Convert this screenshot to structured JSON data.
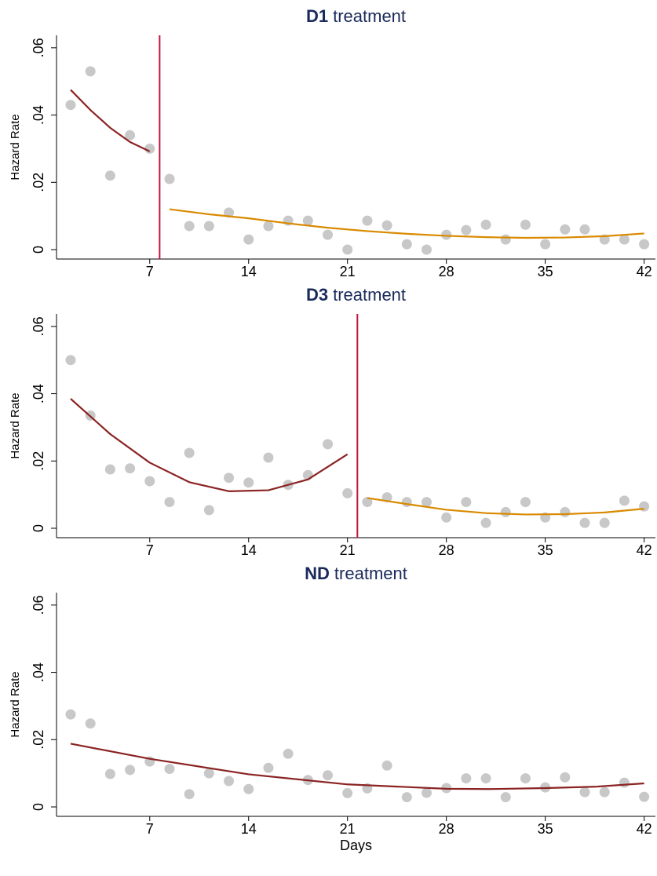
{
  "chart_data": [
    {
      "type": "scatter",
      "title_parts": [
        "D1",
        "treatment"
      ],
      "ylabel": "Hazard Rate",
      "xlim": [
        0.4,
        42.8
      ],
      "ylim": [
        -0.0028,
        0.0637
      ],
      "xticks": [
        7,
        14,
        21,
        28,
        35,
        42
      ],
      "yticks": [
        0,
        {
          "value": 0.02,
          "label": ".02"
        },
        {
          "value": 0.04,
          "label": ".04"
        },
        {
          "value": 0.06,
          "label": ".06"
        }
      ],
      "vline": {
        "x": 7.7,
        "color": "#c0143c"
      },
      "series": [
        {
          "mode": "markers",
          "color": "#c8c8c8",
          "x": [
            1.4,
            2.8,
            4.2,
            5.6,
            7,
            8.4,
            9.8,
            11.2,
            12.6,
            14,
            15.4,
            16.8,
            18.2,
            19.6,
            21,
            22.4,
            23.8,
            25.2,
            26.6,
            28,
            29.4,
            30.8,
            32.2,
            33.6,
            35,
            36.4,
            37.8,
            39.2,
            40.6,
            42
          ],
          "values": [
            0.043,
            0.053,
            0.022,
            0.034,
            0.03,
            0.021,
            0.007,
            0.007,
            0.011,
            0.003,
            0.007,
            0.0086,
            0.0086,
            0.0044,
            0,
            0.0086,
            0.0072,
            0.0016,
            0,
            0.0044,
            0.0058,
            0.0074,
            0.003,
            0.0074,
            0.0016,
            0.006,
            0.006,
            0.003,
            0.003,
            0.0016
          ]
        },
        {
          "mode": "lines",
          "color": "#8b2323",
          "x": [
            1.4,
            2.8,
            4.2,
            5.6,
            7
          ],
          "values": [
            0.0475,
            0.0415,
            0.0362,
            0.032,
            0.0292
          ]
        },
        {
          "mode": "lines",
          "color": "#d98a00",
          "x": [
            8.4,
            11.2,
            14,
            16.8,
            19.6,
            22.4,
            25.2,
            28,
            30.8,
            33.6,
            36.4,
            39.2,
            42
          ],
          "values": [
            0.012,
            0.0105,
            0.0093,
            0.0078,
            0.0065,
            0.0055,
            0.0047,
            0.0041,
            0.0037,
            0.0035,
            0.0036,
            0.004,
            0.0048
          ]
        }
      ]
    },
    {
      "type": "scatter",
      "title_parts": [
        "D3",
        "treatment"
      ],
      "ylabel": "Hazard Rate",
      "xlim": [
        0.4,
        42.8
      ],
      "ylim": [
        -0.0028,
        0.0637
      ],
      "xticks": [
        7,
        14,
        21,
        28,
        35,
        42
      ],
      "yticks": [
        0,
        {
          "value": 0.02,
          "label": ".02"
        },
        {
          "value": 0.04,
          "label": ".04"
        },
        {
          "value": 0.06,
          "label": ".06"
        }
      ],
      "vline": {
        "x": 21.7,
        "color": "#c0143c"
      },
      "series": [
        {
          "mode": "markers",
          "color": "#c8c8c8",
          "x": [
            1.4,
            2.8,
            4.2,
            5.6,
            7,
            8.4,
            9.8,
            11.2,
            12.6,
            14,
            15.4,
            16.8,
            18.2,
            19.6,
            21,
            22.4,
            23.8,
            25.2,
            26.6,
            28,
            29.4,
            30.8,
            32.2,
            33.6,
            35,
            36.4,
            37.8,
            39.2,
            40.6,
            42
          ],
          "values": [
            0.05,
            0.0335,
            0.0175,
            0.0178,
            0.014,
            0.0078,
            0.0224,
            0.0054,
            0.015,
            0.0136,
            0.021,
            0.0129,
            0.0158,
            0.025,
            0.0104,
            0.0078,
            0.0092,
            0.0078,
            0.0078,
            0.0032,
            0.0078,
            0.0016,
            0.0048,
            0.0078,
            0.0032,
            0.0048,
            0.0016,
            0.0016,
            0.0082,
            0.0065
          ]
        },
        {
          "mode": "lines",
          "color": "#8b2323",
          "x": [
            1.4,
            4.2,
            7,
            9.8,
            12.6,
            15.4,
            18.2,
            21
          ],
          "values": [
            0.0385,
            0.028,
            0.0195,
            0.0137,
            0.011,
            0.0113,
            0.0145,
            0.022
          ]
        },
        {
          "mode": "lines",
          "color": "#d98a00",
          "x": [
            22.4,
            25.2,
            28,
            30.8,
            33.6,
            36.4,
            39.2,
            42
          ],
          "values": [
            0.009,
            0.0072,
            0.0055,
            0.0045,
            0.0041,
            0.0042,
            0.0047,
            0.0058
          ]
        }
      ]
    },
    {
      "type": "scatter",
      "title_parts": [
        "ND",
        "treatment"
      ],
      "ylabel": "Hazard Rate",
      "xlabel": "Days",
      "xlim": [
        0.4,
        42.8
      ],
      "ylim": [
        -0.0028,
        0.0637
      ],
      "xticks": [
        7,
        14,
        21,
        28,
        35,
        42
      ],
      "yticks": [
        0,
        {
          "value": 0.02,
          "label": ".02"
        },
        {
          "value": 0.04,
          "label": ".04"
        },
        {
          "value": 0.06,
          "label": ".06"
        }
      ],
      "series": [
        {
          "mode": "markers",
          "color": "#c8c8c8",
          "x": [
            1.4,
            2.8,
            4.2,
            5.6,
            7,
            8.4,
            9.8,
            11.2,
            12.6,
            14,
            15.4,
            16.8,
            18.2,
            19.6,
            21,
            22.4,
            23.8,
            25.2,
            26.6,
            28,
            29.4,
            30.8,
            32.2,
            33.6,
            35,
            36.4,
            37.8,
            39.2,
            40.6,
            42
          ],
          "values": [
            0.0275,
            0.0248,
            0.0098,
            0.011,
            0.0135,
            0.0113,
            0.0038,
            0.01,
            0.0077,
            0.0053,
            0.0116,
            0.0158,
            0.008,
            0.0094,
            0.0041,
            0.0055,
            0.0123,
            0.0029,
            0.0042,
            0.0056,
            0.0085,
            0.0085,
            0.0029,
            0.0085,
            0.0058,
            0.0088,
            0.0044,
            0.0044,
            0.0072,
            0.003
          ]
        },
        {
          "mode": "lines",
          "color": "#8b2323",
          "x": [
            1.4,
            7,
            14,
            21,
            28,
            31,
            35,
            38.5,
            42
          ],
          "values": [
            0.0188,
            0.0143,
            0.0097,
            0.0067,
            0.0054,
            0.0053,
            0.0056,
            0.006,
            0.007
          ]
        }
      ]
    }
  ]
}
